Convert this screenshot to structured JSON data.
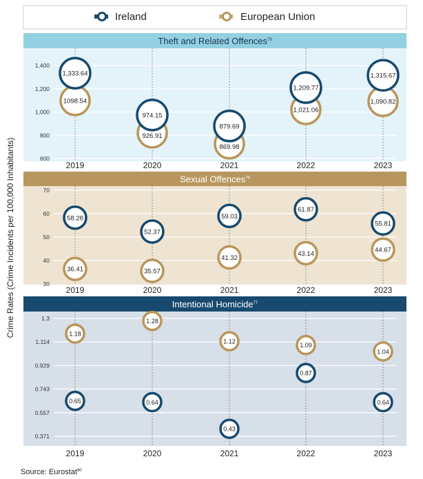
{
  "legend": {
    "ireland": "Ireland",
    "eu": "European Union"
  },
  "colors": {
    "ireland": "#174a6e",
    "eu": "#b8965a"
  },
  "ylabel": "Crime Rates (Crime Incidents per 100,000 Inhabitants)",
  "source": {
    "text": "Source: Eurostat",
    "sup": "80"
  },
  "chart_data": [
    {
      "type": "scatter",
      "title": "Theft and Related Offences",
      "title_sup": "79",
      "categories": [
        "2019",
        "2020",
        "2021",
        "2022",
        "2023"
      ],
      "ticks": [
        "600",
        "800",
        "1,000",
        "1,200",
        "1,400"
      ],
      "ylim": [
        600,
        1400
      ],
      "grid": true,
      "series": [
        {
          "name": "Ireland",
          "values": [
            1333.64,
            974.15,
            879.69,
            1209.77,
            1315.67
          ],
          "labels": [
            "1,333.64",
            "974.15",
            "879.69",
            "1,209.77",
            "1,315.67"
          ]
        },
        {
          "name": "European Union",
          "values": [
            1098.54,
            926.91,
            869.98,
            1021.06,
            1090.82
          ],
          "labels": [
            "1098.54",
            "926.91",
            "869.98",
            "1,021.06",
            "1,090.82"
          ]
        }
      ]
    },
    {
      "type": "scatter",
      "title": "Sexual Offences",
      "title_sup": "78",
      "categories": [
        "2019",
        "2020",
        "2021",
        "2022",
        "2023"
      ],
      "ticks": [
        "30",
        "40",
        "50",
        "60",
        "70"
      ],
      "ylim": [
        30,
        70
      ],
      "grid": true,
      "series": [
        {
          "name": "Ireland",
          "values": [
            58.28,
            52.37,
            59.03,
            61.87,
            55.81
          ],
          "labels": [
            "58.28",
            "52.37",
            "59.03",
            "61.87",
            "55.81"
          ]
        },
        {
          "name": "European Union",
          "values": [
            36.41,
            35.57,
            41.32,
            43.14,
            44.67
          ],
          "labels": [
            "36.41",
            "35.57",
            "41.32",
            "43.14",
            "44.67"
          ]
        }
      ]
    },
    {
      "type": "scatter",
      "title": "Intentional Homicide",
      "title_sup": "77",
      "categories": [
        "2019",
        "2020",
        "2021",
        "2022",
        "2023"
      ],
      "ticks": [
        "0.371",
        "0.557",
        "0.743",
        "0.929",
        "1.114",
        "1.3"
      ],
      "ylim": [
        0.371,
        1.3
      ],
      "grid": true,
      "series": [
        {
          "name": "Ireland",
          "values": [
            0.65,
            0.64,
            0.43,
            0.87,
            0.64
          ],
          "labels": [
            "0.65",
            "0.64",
            "0.43",
            "0.87",
            "0.64"
          ]
        },
        {
          "name": "European Union",
          "values": [
            1.18,
            1.28,
            1.12,
            1.09,
            1.04
          ],
          "labels": [
            "1.18",
            "1.28",
            "1.12",
            "1.09",
            "1.04"
          ]
        }
      ]
    }
  ]
}
